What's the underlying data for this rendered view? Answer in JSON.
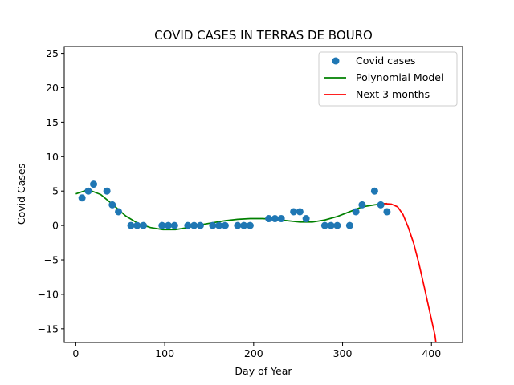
{
  "chart_data": {
    "type": "scatter",
    "title": "COVID CASES IN TERRAS DE BOURO",
    "xlabel": "Day of Year",
    "ylabel": "Covid Cases",
    "xlim": [
      -13,
      435
    ],
    "ylim": [
      -17,
      26
    ],
    "xticks": [
      0,
      100,
      200,
      300,
      400
    ],
    "yticks": [
      -15,
      -10,
      -5,
      0,
      5,
      10,
      15,
      20,
      25
    ],
    "legend_position": "upper-right",
    "grid": false,
    "colors": {
      "points": "#1f77b4",
      "model": "#008000",
      "forecast": "#ff0000"
    },
    "series": [
      {
        "name": "Covid cases",
        "kind": "scatter",
        "points": [
          [
            7,
            4
          ],
          [
            14,
            5
          ],
          [
            20,
            6
          ],
          [
            35,
            5
          ],
          [
            41,
            3
          ],
          [
            48,
            2
          ],
          [
            62,
            0
          ],
          [
            69,
            0
          ],
          [
            76,
            0
          ],
          [
            97,
            0
          ],
          [
            104,
            0
          ],
          [
            111,
            0
          ],
          [
            126,
            0
          ],
          [
            133,
            0
          ],
          [
            140,
            0
          ],
          [
            154,
            0
          ],
          [
            161,
            0
          ],
          [
            168,
            0
          ],
          [
            182,
            0
          ],
          [
            189,
            0
          ],
          [
            196,
            0
          ],
          [
            217,
            1
          ],
          [
            224,
            1
          ],
          [
            231,
            1
          ],
          [
            245,
            2
          ],
          [
            252,
            2
          ],
          [
            259,
            1
          ],
          [
            280,
            0
          ],
          [
            287,
            0
          ],
          [
            294,
            0
          ],
          [
            308,
            0
          ],
          [
            315,
            2
          ],
          [
            322,
            3
          ],
          [
            336,
            5
          ],
          [
            343,
            3
          ],
          [
            350,
            2
          ]
        ]
      },
      {
        "name": "Polynomial Model",
        "kind": "line",
        "points": [
          [
            0,
            4.6
          ],
          [
            14,
            5.2
          ],
          [
            28,
            4.5
          ],
          [
            42,
            3.0
          ],
          [
            56,
            1.4
          ],
          [
            70,
            0.3
          ],
          [
            84,
            -0.3
          ],
          [
            98,
            -0.6
          ],
          [
            112,
            -0.6
          ],
          [
            126,
            -0.3
          ],
          [
            140,
            0.1
          ],
          [
            154,
            0.4
          ],
          [
            168,
            0.7
          ],
          [
            182,
            0.9
          ],
          [
            196,
            1.0
          ],
          [
            210,
            1.0
          ],
          [
            224,
            0.9
          ],
          [
            238,
            0.7
          ],
          [
            252,
            0.5
          ],
          [
            266,
            0.5
          ],
          [
            280,
            0.8
          ],
          [
            294,
            1.3
          ],
          [
            308,
            2.0
          ],
          [
            322,
            2.7
          ],
          [
            336,
            3.0
          ],
          [
            350,
            3.2
          ]
        ]
      },
      {
        "name": "Next 3 months",
        "kind": "line",
        "points": [
          [
            345,
            3.2
          ],
          [
            355,
            3.1
          ],
          [
            362,
            2.7
          ],
          [
            368,
            1.6
          ],
          [
            374,
            -0.3
          ],
          [
            380,
            -2.6
          ],
          [
            386,
            -5.6
          ],
          [
            392,
            -9.0
          ],
          [
            398,
            -12.5
          ],
          [
            404,
            -16.0
          ],
          [
            405,
            -17.0
          ]
        ]
      }
    ]
  }
}
